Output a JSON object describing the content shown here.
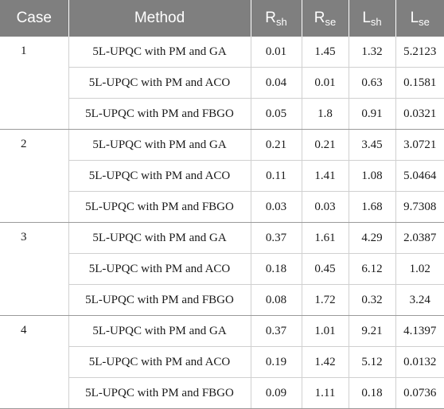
{
  "headers": {
    "case": "Case",
    "method": "Method",
    "rsh_main": "R",
    "rsh_sub": "sh",
    "rse_main": "R",
    "rse_sub": "se",
    "lsh_main": "L",
    "lsh_sub": "sh",
    "lse_main": "L",
    "lse_sub": "se"
  },
  "groups": [
    {
      "case": "1",
      "rows": [
        {
          "method": "5L-UPQC with PM and GA",
          "rsh": "0.01",
          "rse": "1.45",
          "lsh": "1.32",
          "lse": "5.2123"
        },
        {
          "method": "5L-UPQC with PM and ACO",
          "rsh": "0.04",
          "rse": "0.01",
          "lsh": "0.63",
          "lse": "0.1581"
        },
        {
          "method": "5L-UPQC with PM and FBGO",
          "rsh": "0.05",
          "rse": "1.8",
          "lsh": "0.91",
          "lse": "0.0321"
        }
      ]
    },
    {
      "case": "2",
      "rows": [
        {
          "method": "5L-UPQC with PM and GA",
          "rsh": "0.21",
          "rse": "0.21",
          "lsh": "3.45",
          "lse": "3.0721"
        },
        {
          "method": "5L-UPQC with PM and ACO",
          "rsh": "0.11",
          "rse": "1.41",
          "lsh": "1.08",
          "lse": "5.0464"
        },
        {
          "method": "5L-UPQC with PM and FBGO",
          "rsh": "0.03",
          "rse": "0.03",
          "lsh": "1.68",
          "lse": "9.7308"
        }
      ]
    },
    {
      "case": "3",
      "rows": [
        {
          "method": "5L-UPQC with PM and GA",
          "rsh": "0.37",
          "rse": "1.61",
          "lsh": "4.29",
          "lse": "2.0387"
        },
        {
          "method": "5L-UPQC with PM and ACO",
          "rsh": "0.18",
          "rse": "0.45",
          "lsh": "6.12",
          "lse": "1.02"
        },
        {
          "method": "5L-UPQC with PM and FBGO",
          "rsh": "0.08",
          "rse": "1.72",
          "lsh": "0.32",
          "lse": "3.24"
        }
      ]
    },
    {
      "case": "4",
      "rows": [
        {
          "method": "5L-UPQC with PM and GA",
          "rsh": "0.37",
          "rse": "1.01",
          "lsh": "9.21",
          "lse": "4.1397"
        },
        {
          "method": "5L-UPQC with PM and ACO",
          "rsh": "0.19",
          "rse": "1.42",
          "lsh": "5.12",
          "lse": "0.0132"
        },
        {
          "method": "5L-UPQC with PM and FBGO",
          "rsh": "0.09",
          "rse": "1.11",
          "lsh": "0.18",
          "lse": "0.0736"
        }
      ]
    }
  ]
}
